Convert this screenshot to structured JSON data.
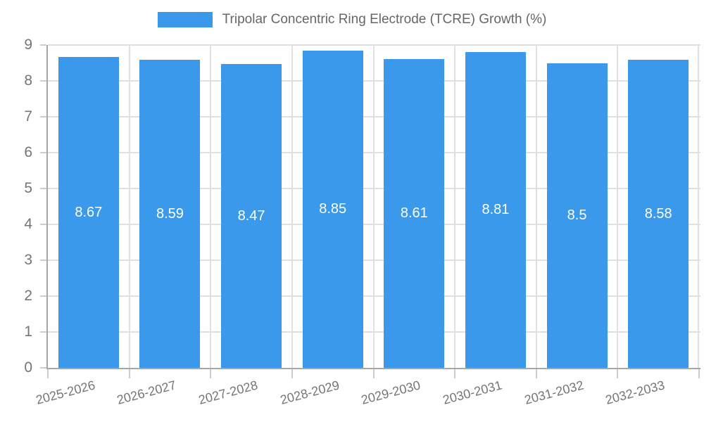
{
  "chart_data": {
    "type": "bar",
    "title": "",
    "legend_position": "top",
    "legend": "Tripolar Concentric Ring Electrode (TCRE) Growth (%)",
    "categories": [
      "2025-2026",
      "2026-2027",
      "2027-2028",
      "2028-2029",
      "2029-2030",
      "2030-2031",
      "2031-2032",
      "2032-2033"
    ],
    "series": [
      {
        "name": "Tripolar Concentric Ring Electrode (TCRE) Growth (%)",
        "values": [
          8.67,
          8.59,
          8.47,
          8.85,
          8.61,
          8.81,
          8.5,
          8.58
        ]
      }
    ],
    "value_labels": [
      "8.67",
      "8.59",
      "8.47",
      "8.85",
      "8.61",
      "8.81",
      "8.5",
      "8.58"
    ],
    "xlabel": "",
    "ylabel": "",
    "ylim": [
      0,
      9
    ],
    "yticks": [
      0,
      1,
      2,
      3,
      4,
      5,
      6,
      7,
      8,
      9
    ],
    "grid": true,
    "colors": {
      "bar": "#3b99ec",
      "grid": "#e0e0e0",
      "axis": "#a6a6a6",
      "tick": "#cccccc",
      "axis_text": "#757575",
      "legend_text": "#666666",
      "value_label": "#ffffff",
      "background": "#ffffff"
    }
  }
}
